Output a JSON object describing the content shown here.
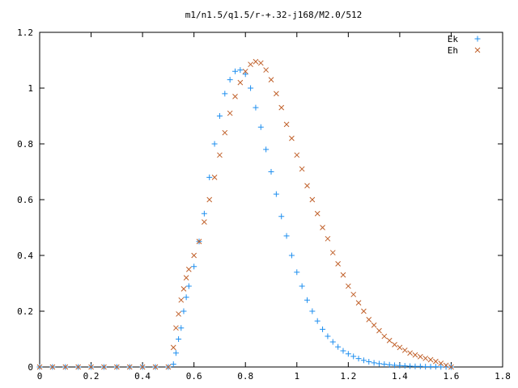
{
  "chart_data": {
    "type": "scatter",
    "title": "m1/n1.5/q1.5/r-+.32-j168/M2.0/512",
    "xlabel": "",
    "ylabel": "",
    "xlim": [
      0,
      1.8
    ],
    "ylim": [
      0,
      1.2
    ],
    "x_ticks": [
      "0",
      "0.2",
      "0.4",
      "0.6",
      "0.8",
      "1",
      "1.2",
      "1.4",
      "1.6",
      "1.8"
    ],
    "y_ticks": [
      "0",
      "0.2",
      "0.4",
      "0.6",
      "0.8",
      "1",
      "1.2"
    ],
    "grid": false,
    "legend_position": "top-right",
    "series": [
      {
        "name": "Ek",
        "marker": "+",
        "color": "#1f8fef",
        "x": [
          0,
          0.05,
          0.1,
          0.15,
          0.2,
          0.25,
          0.3,
          0.35,
          0.4,
          0.45,
          0.5,
          0.52,
          0.53,
          0.54,
          0.55,
          0.56,
          0.57,
          0.58,
          0.6,
          0.62,
          0.64,
          0.66,
          0.68,
          0.7,
          0.72,
          0.74,
          0.76,
          0.78,
          0.8,
          0.82,
          0.84,
          0.86,
          0.88,
          0.9,
          0.92,
          0.94,
          0.96,
          0.98,
          1.0,
          1.02,
          1.04,
          1.06,
          1.08,
          1.1,
          1.12,
          1.14,
          1.16,
          1.18,
          1.2,
          1.22,
          1.24,
          1.26,
          1.28,
          1.3,
          1.32,
          1.34,
          1.36,
          1.38,
          1.4,
          1.42,
          1.44,
          1.46,
          1.48,
          1.5,
          1.52,
          1.54,
          1.56,
          1.58,
          1.6
        ],
        "y": [
          0,
          0,
          0,
          0,
          0,
          0,
          0,
          0,
          0,
          0,
          0,
          0.01,
          0.05,
          0.1,
          0.14,
          0.2,
          0.25,
          0.29,
          0.36,
          0.45,
          0.55,
          0.68,
          0.8,
          0.9,
          0.98,
          1.03,
          1.06,
          1.065,
          1.05,
          1.0,
          0.93,
          0.86,
          0.78,
          0.7,
          0.62,
          0.54,
          0.47,
          0.4,
          0.34,
          0.29,
          0.24,
          0.2,
          0.165,
          0.135,
          0.11,
          0.09,
          0.072,
          0.058,
          0.047,
          0.038,
          0.03,
          0.024,
          0.019,
          0.015,
          0.012,
          0.01,
          0.008,
          0.006,
          0.005,
          0.004,
          0.003,
          0.002,
          0.002,
          0.001,
          0.001,
          0.001,
          0.0005,
          0.0005,
          0
        ]
      },
      {
        "name": "Eh",
        "marker": "x",
        "color": "#c0602a",
        "x": [
          0,
          0.05,
          0.1,
          0.15,
          0.2,
          0.25,
          0.3,
          0.35,
          0.4,
          0.45,
          0.5,
          0.52,
          0.53,
          0.54,
          0.55,
          0.56,
          0.57,
          0.58,
          0.6,
          0.62,
          0.64,
          0.66,
          0.68,
          0.7,
          0.72,
          0.74,
          0.76,
          0.78,
          0.8,
          0.82,
          0.84,
          0.86,
          0.88,
          0.9,
          0.92,
          0.94,
          0.96,
          0.98,
          1.0,
          1.02,
          1.04,
          1.06,
          1.08,
          1.1,
          1.12,
          1.14,
          1.16,
          1.18,
          1.2,
          1.22,
          1.24,
          1.26,
          1.28,
          1.3,
          1.32,
          1.34,
          1.36,
          1.38,
          1.4,
          1.42,
          1.44,
          1.46,
          1.48,
          1.5,
          1.52,
          1.54,
          1.56,
          1.58,
          1.6
        ],
        "y": [
          0,
          0,
          0,
          0,
          0,
          0,
          0,
          0,
          0,
          0,
          0,
          0.07,
          0.14,
          0.19,
          0.24,
          0.28,
          0.32,
          0.35,
          0.4,
          0.45,
          0.52,
          0.6,
          0.68,
          0.76,
          0.84,
          0.91,
          0.97,
          1.02,
          1.06,
          1.085,
          1.095,
          1.09,
          1.065,
          1.03,
          0.98,
          0.93,
          0.87,
          0.82,
          0.76,
          0.71,
          0.65,
          0.6,
          0.55,
          0.5,
          0.46,
          0.41,
          0.37,
          0.33,
          0.29,
          0.26,
          0.23,
          0.2,
          0.17,
          0.15,
          0.13,
          0.11,
          0.095,
          0.08,
          0.07,
          0.06,
          0.05,
          0.043,
          0.037,
          0.031,
          0.026,
          0.02,
          0.013,
          0.006,
          0
        ]
      }
    ]
  }
}
